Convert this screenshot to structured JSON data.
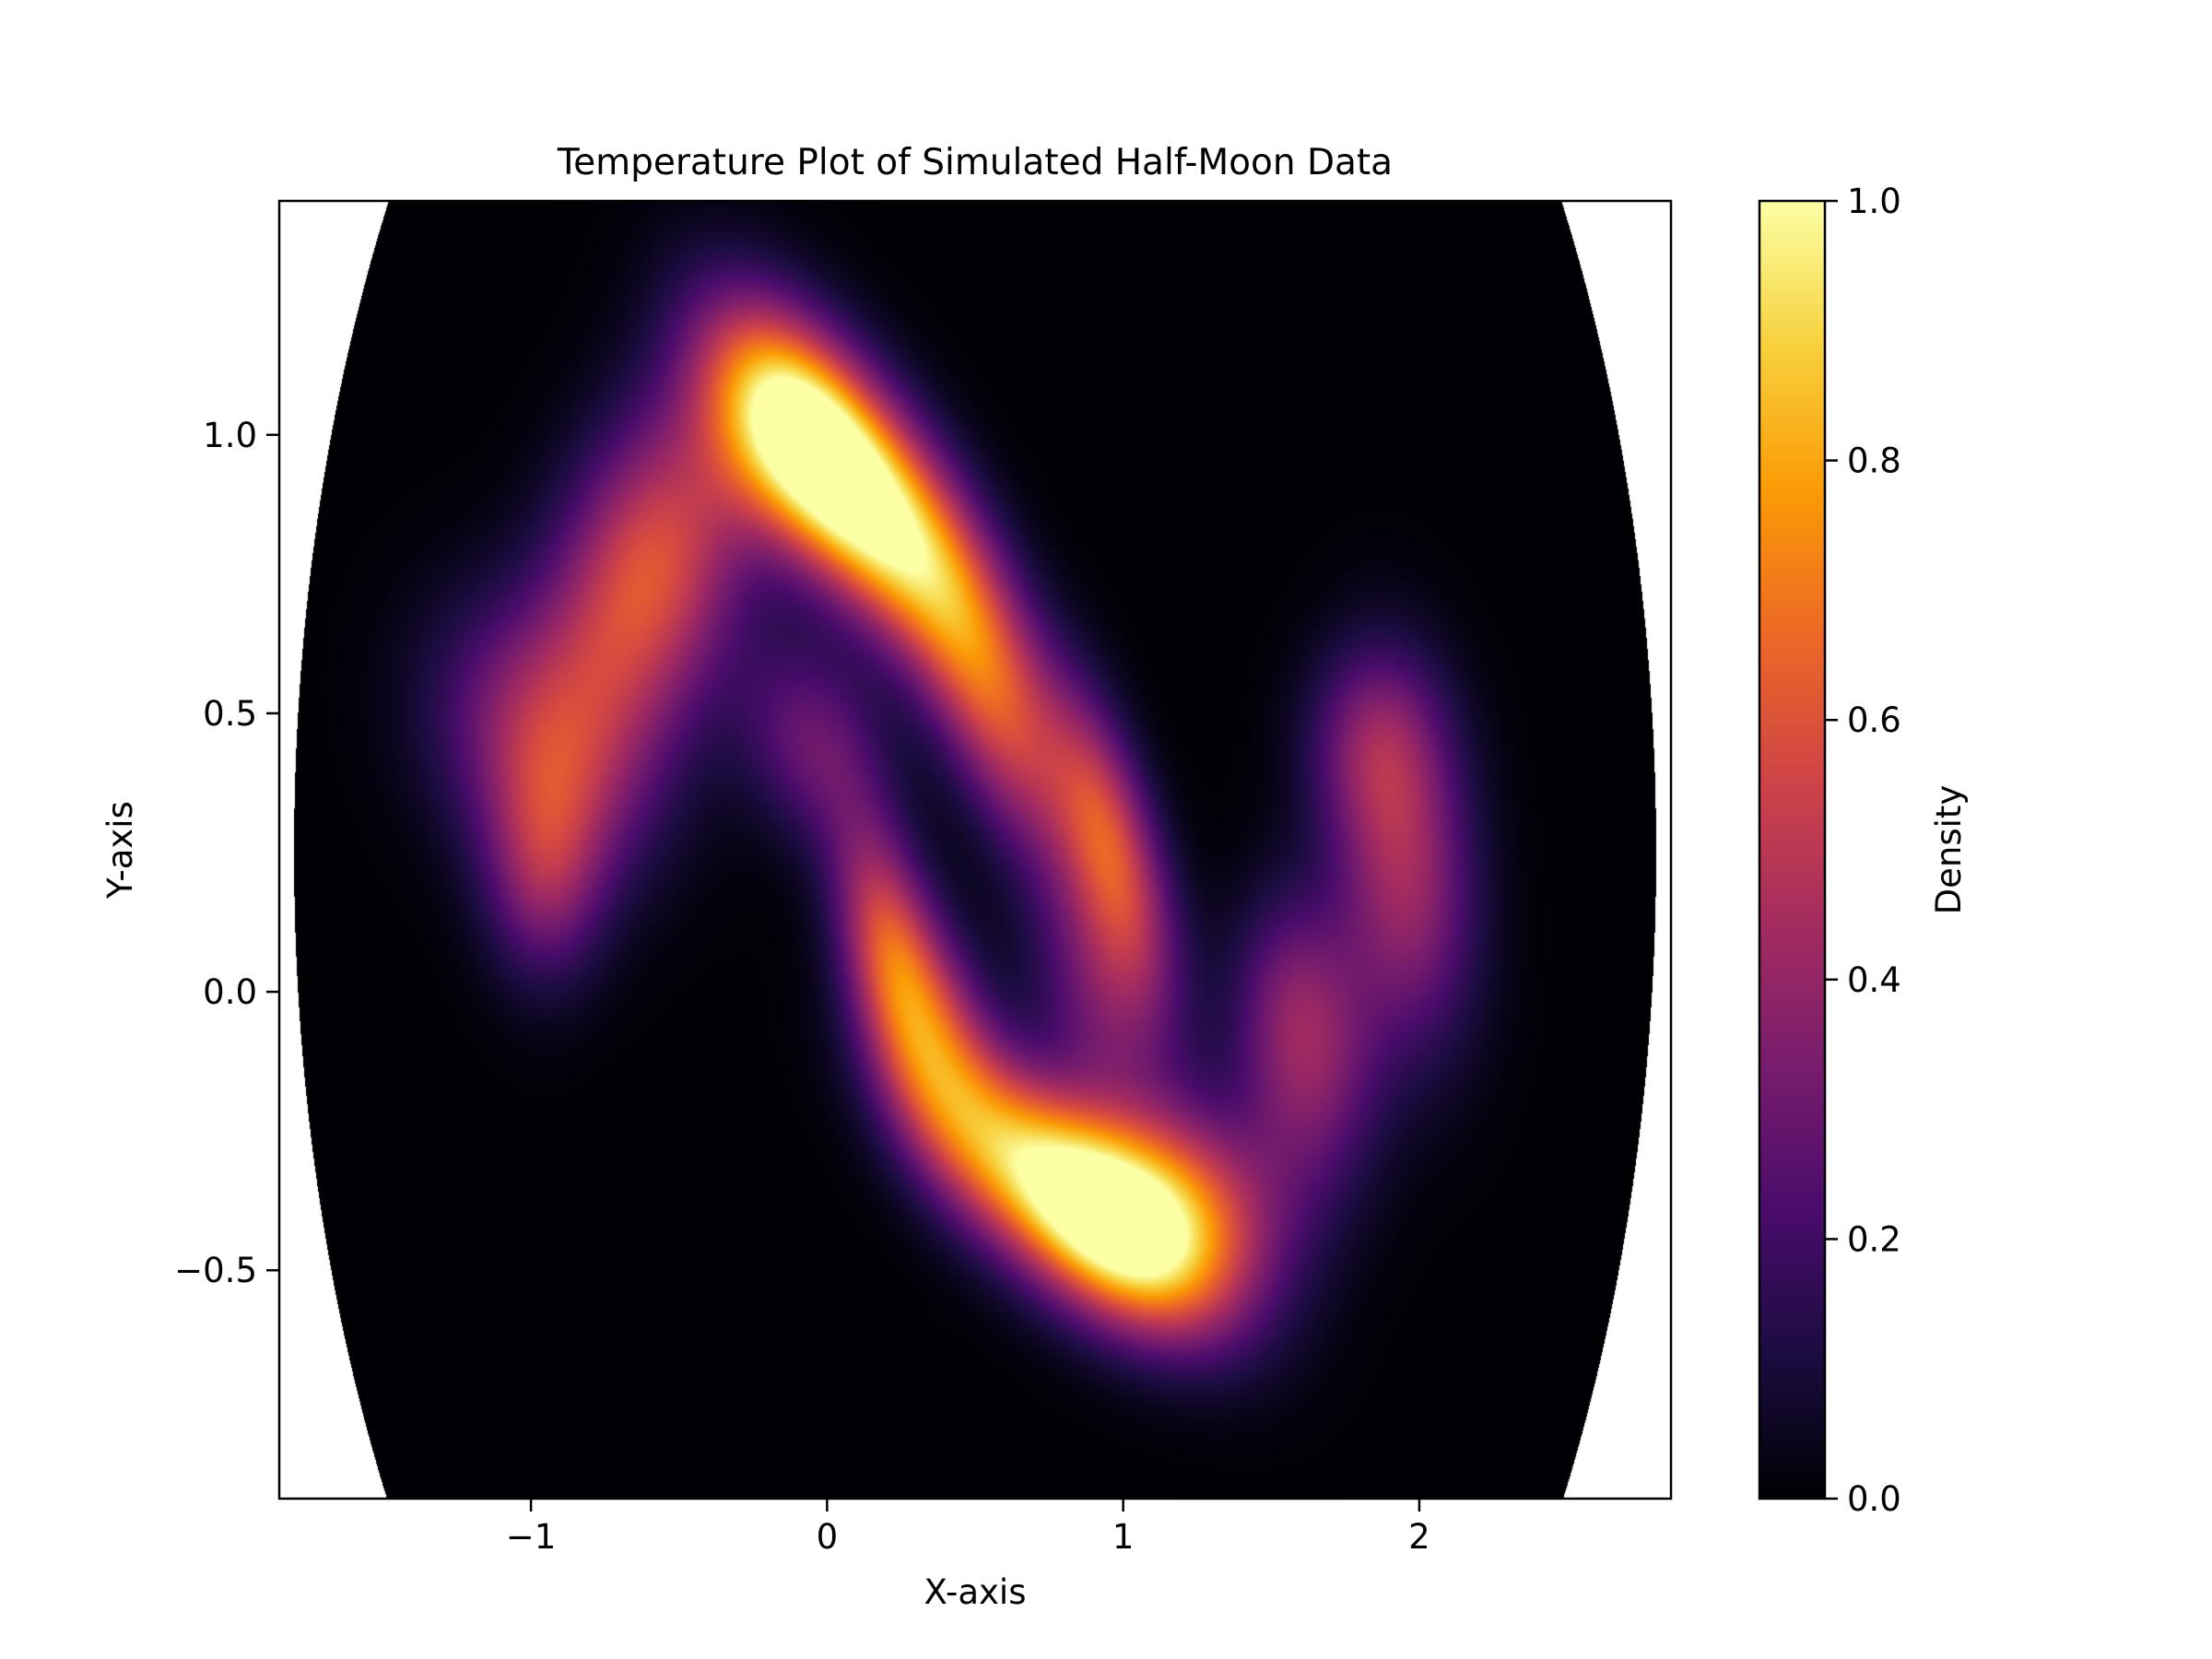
{
  "chart_data": {
    "type": "heatmap",
    "title": "Temperature Plot of Simulated Half-Moon Data",
    "xlabel": "X-axis",
    "ylabel": "Y-axis",
    "xlim": [
      -1.85,
      2.85
    ],
    "ylim": [
      -0.91,
      1.42
    ],
    "x_ticks": [
      -1,
      0,
      1,
      2
    ],
    "x_tick_labels": [
      "−1",
      "0",
      "1",
      "2"
    ],
    "y_ticks": [
      -0.5,
      0.0,
      0.5,
      1.0
    ],
    "y_tick_labels": [
      "−0.5",
      "0.0",
      "0.5",
      "1.0"
    ],
    "colormap": "inferno",
    "colorbar": {
      "label": "Density",
      "range": [
        0.0,
        1.0
      ],
      "ticks": [
        0.0,
        0.2,
        0.4,
        0.6,
        0.8,
        1.0
      ],
      "tick_labels": [
        "0.0",
        "0.2",
        "0.4",
        "0.6",
        "0.8",
        "1.0"
      ],
      "colors": [
        "#000004",
        "#1b0c41",
        "#4a0c6b",
        "#781c6d",
        "#a52c60",
        "#cf4446",
        "#ed6925",
        "#fb9b06",
        "#f7d13d",
        "#fcffa4"
      ]
    },
    "density_peaks": [
      {
        "x": 0.1,
        "y": 0.9,
        "value": 1.0
      },
      {
        "x": 0.8,
        "y": -0.36,
        "value": 0.95
      }
    ],
    "uncovered_corners": [
      "top-right",
      "bottom-left"
    ],
    "grid": false
  }
}
